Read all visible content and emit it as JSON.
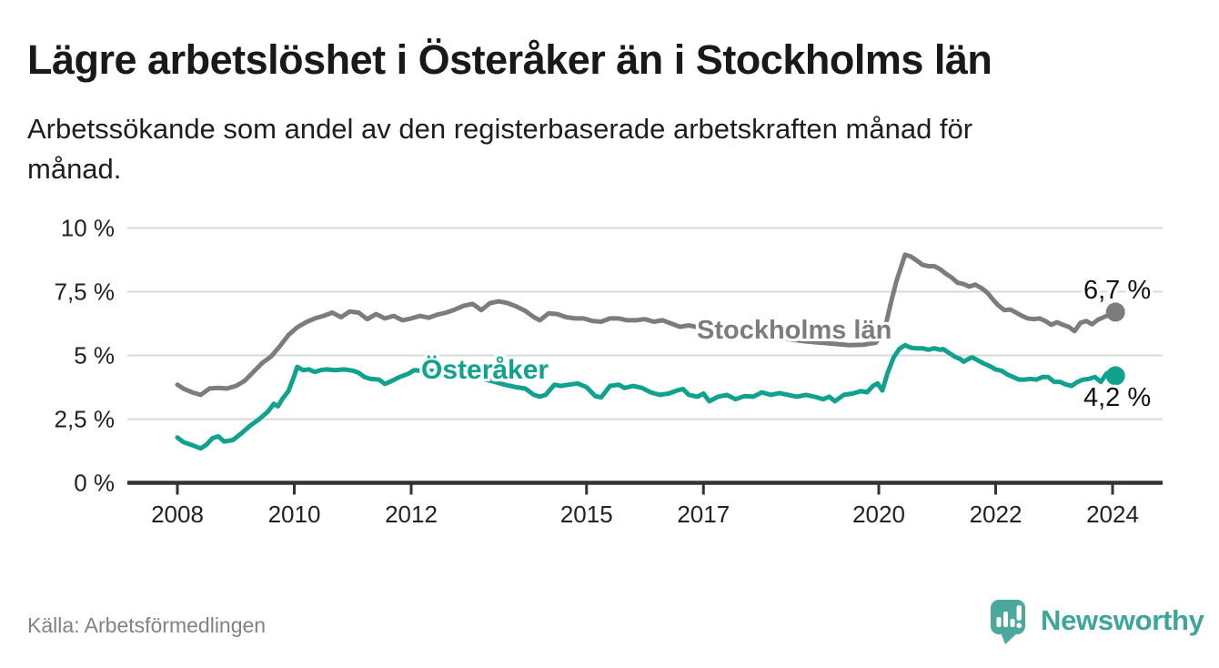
{
  "header": {
    "title": "Lägre arbetslöshet i Österåker än i Stockholms län",
    "subtitle": "Arbetssökande som andel av den registerbaserade arbetskraften månad för månad.",
    "subtitle_lines": [
      "Arbetssökande som andel av den registerbaserade arbetskraften månad för",
      "månad."
    ]
  },
  "footer": {
    "source": "Källa: Arbetsförmedlingen",
    "logo_text": "Newsworthy"
  },
  "colors": {
    "stockholm_line": "#7c7c7c",
    "osteraker_line": "#10a18f",
    "gridline": "#d9d9d9",
    "axis": "#333333",
    "tick_label": "#222222",
    "logo_icon": "#4ba89d",
    "logo_text": "#3ca69a"
  },
  "chart_data": {
    "type": "line",
    "unit": "%",
    "grid": "horizontal",
    "legend_position": "inline-labels-on-lines",
    "x_range": [
      2008,
      2024.3
    ],
    "y_range": [
      0,
      10
    ],
    "x_ticks": [
      {
        "label": "2008",
        "value": 2008
      },
      {
        "label": "2010",
        "value": 2010
      },
      {
        "label": "2012",
        "value": 2012
      },
      {
        "label": "2015",
        "value": 2015
      },
      {
        "label": "2017",
        "value": 2017
      },
      {
        "label": "2020",
        "value": 2020
      },
      {
        "label": "2022",
        "value": 2022
      },
      {
        "label": "2024",
        "value": 2024
      }
    ],
    "y_ticks": [
      {
        "label": "10 %",
        "value": 10
      },
      {
        "label": "7,5 %",
        "value": 7.5
      },
      {
        "label": "5 %",
        "value": 5
      },
      {
        "label": "2,5 %",
        "value": 2.5
      },
      {
        "label": "0 %",
        "value": 0
      }
    ],
    "series": [
      {
        "name": "Stockholms län",
        "color": "#7c7c7c",
        "end_label": "6,7 %",
        "end_value": 6.7,
        "points": [
          [
            2008.0,
            3.85
          ],
          [
            2008.1,
            3.7
          ],
          [
            2008.25,
            3.55
          ],
          [
            2008.4,
            3.45
          ],
          [
            2008.55,
            3.7
          ],
          [
            2008.7,
            3.72
          ],
          [
            2008.85,
            3.7
          ],
          [
            2009.0,
            3.8
          ],
          [
            2009.15,
            4.0
          ],
          [
            2009.3,
            4.35
          ],
          [
            2009.45,
            4.7
          ],
          [
            2009.6,
            4.95
          ],
          [
            2009.75,
            5.35
          ],
          [
            2009.9,
            5.8
          ],
          [
            2010.05,
            6.1
          ],
          [
            2010.2,
            6.3
          ],
          [
            2010.35,
            6.45
          ],
          [
            2010.5,
            6.55
          ],
          [
            2010.65,
            6.68
          ],
          [
            2010.8,
            6.5
          ],
          [
            2010.95,
            6.72
          ],
          [
            2011.1,
            6.68
          ],
          [
            2011.25,
            6.42
          ],
          [
            2011.4,
            6.62
          ],
          [
            2011.55,
            6.45
          ],
          [
            2011.7,
            6.55
          ],
          [
            2011.85,
            6.38
          ],
          [
            2012.0,
            6.45
          ],
          [
            2012.15,
            6.55
          ],
          [
            2012.3,
            6.48
          ],
          [
            2012.45,
            6.6
          ],
          [
            2012.6,
            6.68
          ],
          [
            2012.75,
            6.8
          ],
          [
            2012.9,
            6.95
          ],
          [
            2013.05,
            7.02
          ],
          [
            2013.2,
            6.78
          ],
          [
            2013.35,
            7.05
          ],
          [
            2013.5,
            7.12
          ],
          [
            2013.65,
            7.05
          ],
          [
            2013.8,
            6.92
          ],
          [
            2013.95,
            6.75
          ],
          [
            2014.1,
            6.5
          ],
          [
            2014.2,
            6.38
          ],
          [
            2014.35,
            6.65
          ],
          [
            2014.5,
            6.62
          ],
          [
            2014.65,
            6.5
          ],
          [
            2014.8,
            6.45
          ],
          [
            2014.95,
            6.45
          ],
          [
            2015.1,
            6.35
          ],
          [
            2015.25,
            6.32
          ],
          [
            2015.4,
            6.45
          ],
          [
            2015.55,
            6.45
          ],
          [
            2015.7,
            6.38
          ],
          [
            2015.85,
            6.38
          ],
          [
            2016.0,
            6.42
          ],
          [
            2016.15,
            6.32
          ],
          [
            2016.3,
            6.38
          ],
          [
            2016.45,
            6.25
          ],
          [
            2016.6,
            6.12
          ],
          [
            2016.75,
            6.18
          ],
          [
            2016.9,
            6.1
          ],
          [
            2017.05,
            6.05
          ],
          [
            2017.2,
            6.08
          ],
          [
            2017.4,
            6.0
          ],
          [
            2017.6,
            5.92
          ],
          [
            2017.8,
            5.85
          ],
          [
            2018.0,
            5.8
          ],
          [
            2018.25,
            5.7
          ],
          [
            2018.5,
            5.62
          ],
          [
            2018.75,
            5.55
          ],
          [
            2019.0,
            5.5
          ],
          [
            2019.25,
            5.45
          ],
          [
            2019.5,
            5.4
          ],
          [
            2019.75,
            5.42
          ],
          [
            2019.95,
            5.5
          ],
          [
            2020.1,
            6.0
          ],
          [
            2020.2,
            7.0
          ],
          [
            2020.3,
            7.9
          ],
          [
            2020.45,
            8.95
          ],
          [
            2020.55,
            8.88
          ],
          [
            2020.65,
            8.72
          ],
          [
            2020.75,
            8.55
          ],
          [
            2020.85,
            8.5
          ],
          [
            2020.95,
            8.5
          ],
          [
            2021.05,
            8.38
          ],
          [
            2021.15,
            8.2
          ],
          [
            2021.25,
            8.05
          ],
          [
            2021.35,
            7.85
          ],
          [
            2021.45,
            7.8
          ],
          [
            2021.55,
            7.7
          ],
          [
            2021.65,
            7.78
          ],
          [
            2021.75,
            7.65
          ],
          [
            2021.85,
            7.48
          ],
          [
            2021.95,
            7.2
          ],
          [
            2022.05,
            6.95
          ],
          [
            2022.15,
            6.78
          ],
          [
            2022.25,
            6.8
          ],
          [
            2022.35,
            6.68
          ],
          [
            2022.45,
            6.55
          ],
          [
            2022.55,
            6.45
          ],
          [
            2022.65,
            6.42
          ],
          [
            2022.75,
            6.45
          ],
          [
            2022.85,
            6.35
          ],
          [
            2022.95,
            6.2
          ],
          [
            2023.05,
            6.3
          ],
          [
            2023.15,
            6.2
          ],
          [
            2023.25,
            6.12
          ],
          [
            2023.35,
            5.95
          ],
          [
            2023.45,
            6.28
          ],
          [
            2023.55,
            6.35
          ],
          [
            2023.65,
            6.22
          ],
          [
            2023.75,
            6.4
          ],
          [
            2023.85,
            6.5
          ],
          [
            2023.95,
            6.6
          ],
          [
            2024.05,
            6.7
          ]
        ]
      },
      {
        "name": "Österåker",
        "color": "#10a18f",
        "end_label": "4,2 %",
        "end_value": 4.2,
        "points": [
          [
            2008.0,
            1.78
          ],
          [
            2008.1,
            1.6
          ],
          [
            2008.25,
            1.48
          ],
          [
            2008.4,
            1.35
          ],
          [
            2008.5,
            1.5
          ],
          [
            2008.6,
            1.75
          ],
          [
            2008.7,
            1.82
          ],
          [
            2008.8,
            1.62
          ],
          [
            2008.95,
            1.68
          ],
          [
            2009.1,
            1.95
          ],
          [
            2009.25,
            2.25
          ],
          [
            2009.4,
            2.5
          ],
          [
            2009.55,
            2.8
          ],
          [
            2009.65,
            3.1
          ],
          [
            2009.72,
            3.0
          ],
          [
            2009.8,
            3.3
          ],
          [
            2009.9,
            3.6
          ],
          [
            2010.0,
            4.2
          ],
          [
            2010.05,
            4.55
          ],
          [
            2010.15,
            4.42
          ],
          [
            2010.25,
            4.45
          ],
          [
            2010.35,
            4.35
          ],
          [
            2010.45,
            4.42
          ],
          [
            2010.55,
            4.45
          ],
          [
            2010.7,
            4.42
          ],
          [
            2010.85,
            4.45
          ],
          [
            2011.0,
            4.4
          ],
          [
            2011.1,
            4.32
          ],
          [
            2011.2,
            4.15
          ],
          [
            2011.3,
            4.08
          ],
          [
            2011.45,
            4.05
          ],
          [
            2011.55,
            3.88
          ],
          [
            2011.65,
            3.98
          ],
          [
            2011.8,
            4.15
          ],
          [
            2011.95,
            4.28
          ],
          [
            2012.05,
            4.42
          ],
          [
            2012.15,
            4.4
          ],
          [
            2012.25,
            4.42
          ],
          [
            2012.4,
            4.38
          ],
          [
            2012.6,
            4.32
          ],
          [
            2012.8,
            4.28
          ],
          [
            2013.0,
            4.22
          ],
          [
            2013.2,
            4.1
          ],
          [
            2013.4,
            3.98
          ],
          [
            2013.6,
            3.85
          ],
          [
            2013.8,
            3.75
          ],
          [
            2013.95,
            3.7
          ],
          [
            2014.1,
            3.45
          ],
          [
            2014.2,
            3.38
          ],
          [
            2014.3,
            3.45
          ],
          [
            2014.45,
            3.85
          ],
          [
            2014.55,
            3.8
          ],
          [
            2014.7,
            3.85
          ],
          [
            2014.85,
            3.9
          ],
          [
            2015.0,
            3.75
          ],
          [
            2015.15,
            3.4
          ],
          [
            2015.25,
            3.35
          ],
          [
            2015.4,
            3.8
          ],
          [
            2015.55,
            3.85
          ],
          [
            2015.65,
            3.72
          ],
          [
            2015.8,
            3.8
          ],
          [
            2015.95,
            3.72
          ],
          [
            2016.1,
            3.55
          ],
          [
            2016.25,
            3.45
          ],
          [
            2016.4,
            3.5
          ],
          [
            2016.55,
            3.62
          ],
          [
            2016.65,
            3.68
          ],
          [
            2016.75,
            3.45
          ],
          [
            2016.9,
            3.38
          ],
          [
            2017.0,
            3.5
          ],
          [
            2017.1,
            3.2
          ],
          [
            2017.25,
            3.38
          ],
          [
            2017.4,
            3.45
          ],
          [
            2017.55,
            3.28
          ],
          [
            2017.7,
            3.4
          ],
          [
            2017.85,
            3.38
          ],
          [
            2018.0,
            3.55
          ],
          [
            2018.15,
            3.45
          ],
          [
            2018.3,
            3.52
          ],
          [
            2018.45,
            3.45
          ],
          [
            2018.6,
            3.38
          ],
          [
            2018.75,
            3.45
          ],
          [
            2018.9,
            3.38
          ],
          [
            2019.05,
            3.28
          ],
          [
            2019.15,
            3.38
          ],
          [
            2019.25,
            3.2
          ],
          [
            2019.4,
            3.45
          ],
          [
            2019.55,
            3.5
          ],
          [
            2019.7,
            3.6
          ],
          [
            2019.8,
            3.55
          ],
          [
            2019.9,
            3.8
          ],
          [
            2019.98,
            3.9
          ],
          [
            2020.06,
            3.62
          ],
          [
            2020.15,
            4.3
          ],
          [
            2020.25,
            4.9
          ],
          [
            2020.35,
            5.25
          ],
          [
            2020.45,
            5.4
          ],
          [
            2020.55,
            5.3
          ],
          [
            2020.65,
            5.28
          ],
          [
            2020.75,
            5.28
          ],
          [
            2020.85,
            5.22
          ],
          [
            2020.95,
            5.28
          ],
          [
            2021.05,
            5.22
          ],
          [
            2021.1,
            5.25
          ],
          [
            2021.2,
            5.1
          ],
          [
            2021.3,
            4.95
          ],
          [
            2021.4,
            4.85
          ],
          [
            2021.45,
            4.75
          ],
          [
            2021.55,
            4.88
          ],
          [
            2021.6,
            4.92
          ],
          [
            2021.7,
            4.8
          ],
          [
            2021.8,
            4.68
          ],
          [
            2021.9,
            4.58
          ],
          [
            2022.0,
            4.45
          ],
          [
            2022.1,
            4.4
          ],
          [
            2022.2,
            4.25
          ],
          [
            2022.3,
            4.15
          ],
          [
            2022.4,
            4.05
          ],
          [
            2022.5,
            4.05
          ],
          [
            2022.6,
            4.08
          ],
          [
            2022.7,
            4.05
          ],
          [
            2022.8,
            4.15
          ],
          [
            2022.9,
            4.15
          ],
          [
            2023.0,
            3.96
          ],
          [
            2023.1,
            3.96
          ],
          [
            2023.2,
            3.86
          ],
          [
            2023.3,
            3.8
          ],
          [
            2023.4,
            3.96
          ],
          [
            2023.5,
            4.05
          ],
          [
            2023.6,
            4.08
          ],
          [
            2023.7,
            4.15
          ],
          [
            2023.8,
            3.96
          ],
          [
            2023.9,
            4.3
          ],
          [
            2024.05,
            4.2
          ]
        ]
      }
    ]
  }
}
